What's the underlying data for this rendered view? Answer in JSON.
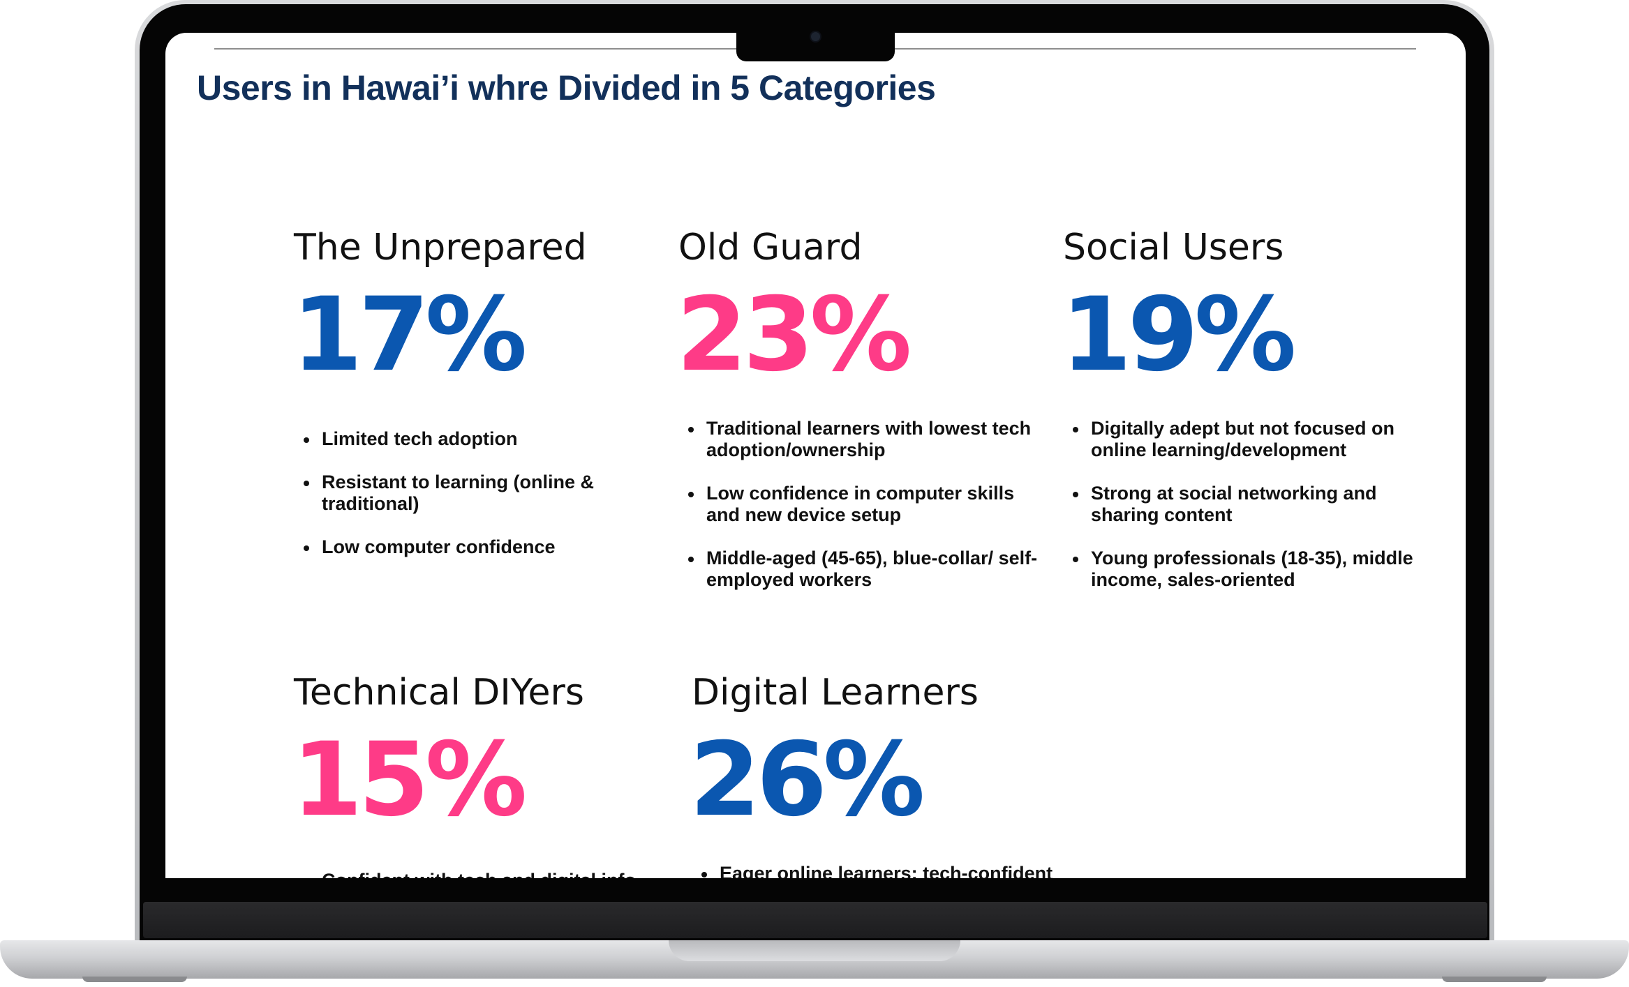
{
  "slide": {
    "title": "Users in Hawai’i whre Divided in 5 Categories"
  },
  "colors": {
    "title": "#12305a",
    "blue": "#0b57b0",
    "pink": "#fe3b87",
    "text": "#111111"
  },
  "categories": [
    {
      "name": "The Unprepared",
      "percent": "17%",
      "color": "blue",
      "bullets": [
        "Limited tech adoption",
        "Resistant to learning (online & traditional)",
        "Low computer confidence"
      ]
    },
    {
      "name": "Old Guard",
      "percent": "23%",
      "color": "pink",
      "bullets": [
        "Traditional learners with lowest tech adoption/ownership",
        "Low confidence in computer skills and new device setup",
        "Middle-aged (45-65), blue-collar/ self-employed workers"
      ]
    },
    {
      "name": "Social Users",
      "percent": "19%",
      "color": "blue",
      "bullets": [
        "Digitally adept but not focused on online learning/development",
        "Strong at social networking and sharing content",
        "Young professionals (18-35), middle income, sales-oriented"
      ]
    },
    {
      "name": "Technical DIYers",
      "percent": "15%",
      "color": "pink",
      "bullets": [
        "Confident with tech and digital info"
      ]
    },
    {
      "name": "Digital Learners",
      "percent": "26%",
      "color": "blue",
      "bullets": [
        "Eager online learners; tech-confident"
      ]
    }
  ]
}
